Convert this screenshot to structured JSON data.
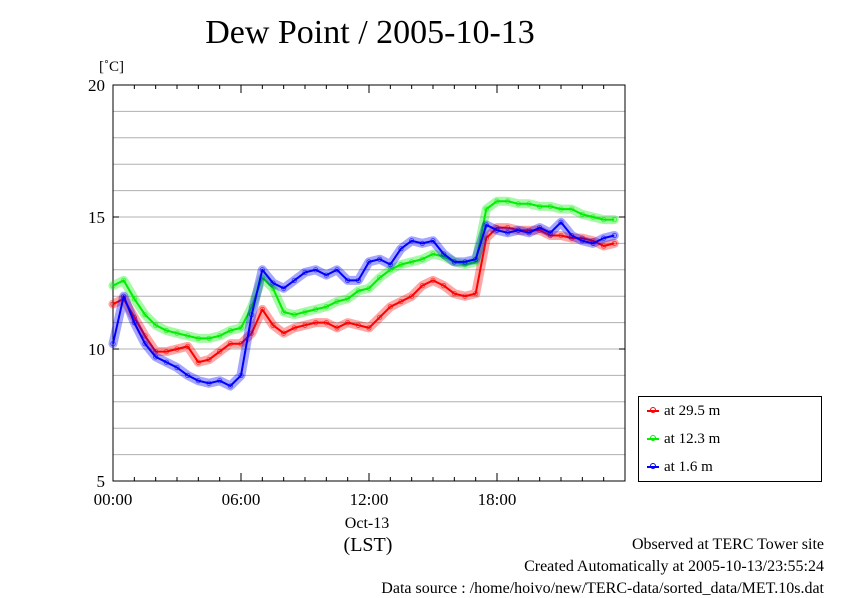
{
  "chart_data": {
    "type": "line",
    "title": "Dew Point / 2005-10-13",
    "yunit": "[˚C]",
    "xlabel": "(LST)",
    "x_tick_labels": [
      "00:00",
      "06:00",
      "12:00",
      "18:00"
    ],
    "x_date_label": "Oct-13",
    "y_tick_labels": [
      "5",
      "10",
      "15",
      "20"
    ],
    "xlim": [
      0,
      23.5
    ],
    "ylim": [
      5,
      20
    ],
    "grid": true,
    "legend_position": "right",
    "x": [
      0.0,
      0.5,
      1.0,
      1.5,
      2.0,
      2.5,
      3.0,
      3.5,
      4.0,
      4.5,
      5.0,
      5.5,
      6.0,
      6.5,
      7.0,
      7.5,
      8.0,
      8.5,
      9.0,
      9.5,
      10.0,
      10.5,
      11.0,
      11.5,
      12.0,
      12.5,
      13.0,
      13.5,
      14.0,
      14.5,
      15.0,
      15.5,
      16.0,
      16.5,
      17.0,
      17.5,
      18.0,
      18.5,
      19.0,
      19.5,
      20.0,
      20.5,
      21.0,
      21.5,
      22.0,
      22.5,
      23.0,
      23.5
    ],
    "series": [
      {
        "name": "at 29.5 m",
        "color": "#ff0000",
        "values": [
          11.7,
          11.9,
          11.2,
          10.5,
          9.9,
          9.9,
          10.0,
          10.1,
          9.5,
          9.6,
          9.9,
          10.2,
          10.2,
          10.6,
          11.5,
          10.9,
          10.6,
          10.8,
          10.9,
          11.0,
          11.0,
          10.8,
          11.0,
          10.9,
          10.8,
          11.2,
          11.6,
          11.8,
          12.0,
          12.4,
          12.6,
          12.4,
          12.1,
          12.0,
          12.1,
          14.2,
          14.6,
          14.6,
          14.5,
          14.5,
          14.5,
          14.3,
          14.3,
          14.2,
          14.2,
          14.1,
          13.9,
          14.0
        ]
      },
      {
        "name": "at 12.3 m",
        "color": "#00ee00",
        "values": [
          12.4,
          12.6,
          11.9,
          11.3,
          10.9,
          10.7,
          10.6,
          10.5,
          10.4,
          10.4,
          10.5,
          10.7,
          10.8,
          11.6,
          12.7,
          12.3,
          11.4,
          11.3,
          11.4,
          11.5,
          11.6,
          11.8,
          11.9,
          12.2,
          12.3,
          12.7,
          13.0,
          13.2,
          13.3,
          13.4,
          13.6,
          13.5,
          13.3,
          13.2,
          13.3,
          15.3,
          15.6,
          15.6,
          15.5,
          15.5,
          15.4,
          15.4,
          15.3,
          15.3,
          15.1,
          15.0,
          14.9,
          14.9
        ]
      },
      {
        "name": "at 1.6 m",
        "color": "#0000ff",
        "values": [
          10.2,
          12.0,
          11.0,
          10.2,
          9.7,
          9.5,
          9.3,
          9.0,
          8.8,
          8.7,
          8.8,
          8.6,
          9.0,
          11.3,
          13.0,
          12.5,
          12.3,
          12.6,
          12.9,
          13.0,
          12.8,
          13.0,
          12.6,
          12.6,
          13.3,
          13.4,
          13.2,
          13.8,
          14.1,
          14.0,
          14.1,
          13.6,
          13.3,
          13.3,
          13.4,
          14.7,
          14.5,
          14.4,
          14.5,
          14.4,
          14.6,
          14.4,
          14.8,
          14.3,
          14.1,
          14.0,
          14.2,
          14.3
        ]
      }
    ]
  },
  "footer": {
    "line1": "Observed at TERC Tower site",
    "line2": "Created Automatically at 2005-10-13/23:55:24",
    "line3": "Data source : /home/hoivo/new/TERC-data/sorted_data/MET.10s.dat"
  }
}
